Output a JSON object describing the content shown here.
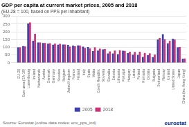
{
  "chart_data": {
    "type": "bar",
    "title": "GDP per capita at current market prices, 2005 and 2018",
    "subtitle": "(EU-28 = 100, based on PPS per inhabitant)",
    "annotations": [
      "Source: Eurostat (online data codes: env_pps_ind)",
      "eurostat"
    ],
    "categories": [
      "EU-28",
      "Euro area (EA-19)",
      "Luxembourg",
      "Ireland",
      "Netherlands",
      "Austria",
      "Denmark",
      "Germany",
      "Sweden",
      "Belgium",
      "United Kingdom",
      "France",
      "Finland",
      "Italy",
      "Spain",
      "Malta",
      "Czech Republic",
      "Slovenia",
      "Slovakia",
      "Estonia",
      "Lithuania",
      "Portugal",
      "Hungary",
      "Latvia",
      "Poland",
      "Romania",
      "Croatia",
      "Bulgaria",
      "Switzerland",
      "Norway",
      "Iceland",
      "United States",
      "Japan",
      "China (inc.Hong Kong)"
    ],
    "series": [
      {
        "name": "2005",
        "color": "#4040aa",
        "values": [
          100,
          108,
          254,
          143,
          131,
          128,
          124,
          117,
          117,
          118,
          116,
          111,
          113,
          105,
          102,
          76,
          79,
          87,
          60,
          60,
          55,
          78,
          62,
          52,
          51,
          38,
          49,
          37,
          151,
          185,
          126,
          155,
          100,
          27
        ]
      },
      {
        "name": "2018",
        "color": "#cc3377",
        "values": [
          100,
          106,
          261,
          187,
          131,
          128,
          126,
          124,
          123,
          118,
          105,
          107,
          111,
          96,
          92,
          100,
          91,
          89,
          73,
          79,
          81,
          77,
          71,
          70,
          71,
          63,
          61,
          53,
          160,
          152,
          142,
          150,
          102,
          28
        ]
      }
    ],
    "ylim": [
      0,
      300
    ],
    "yticks": [
      0,
      50,
      100,
      150,
      200,
      250,
      300
    ],
    "grid": true,
    "legend": "bottom"
  }
}
